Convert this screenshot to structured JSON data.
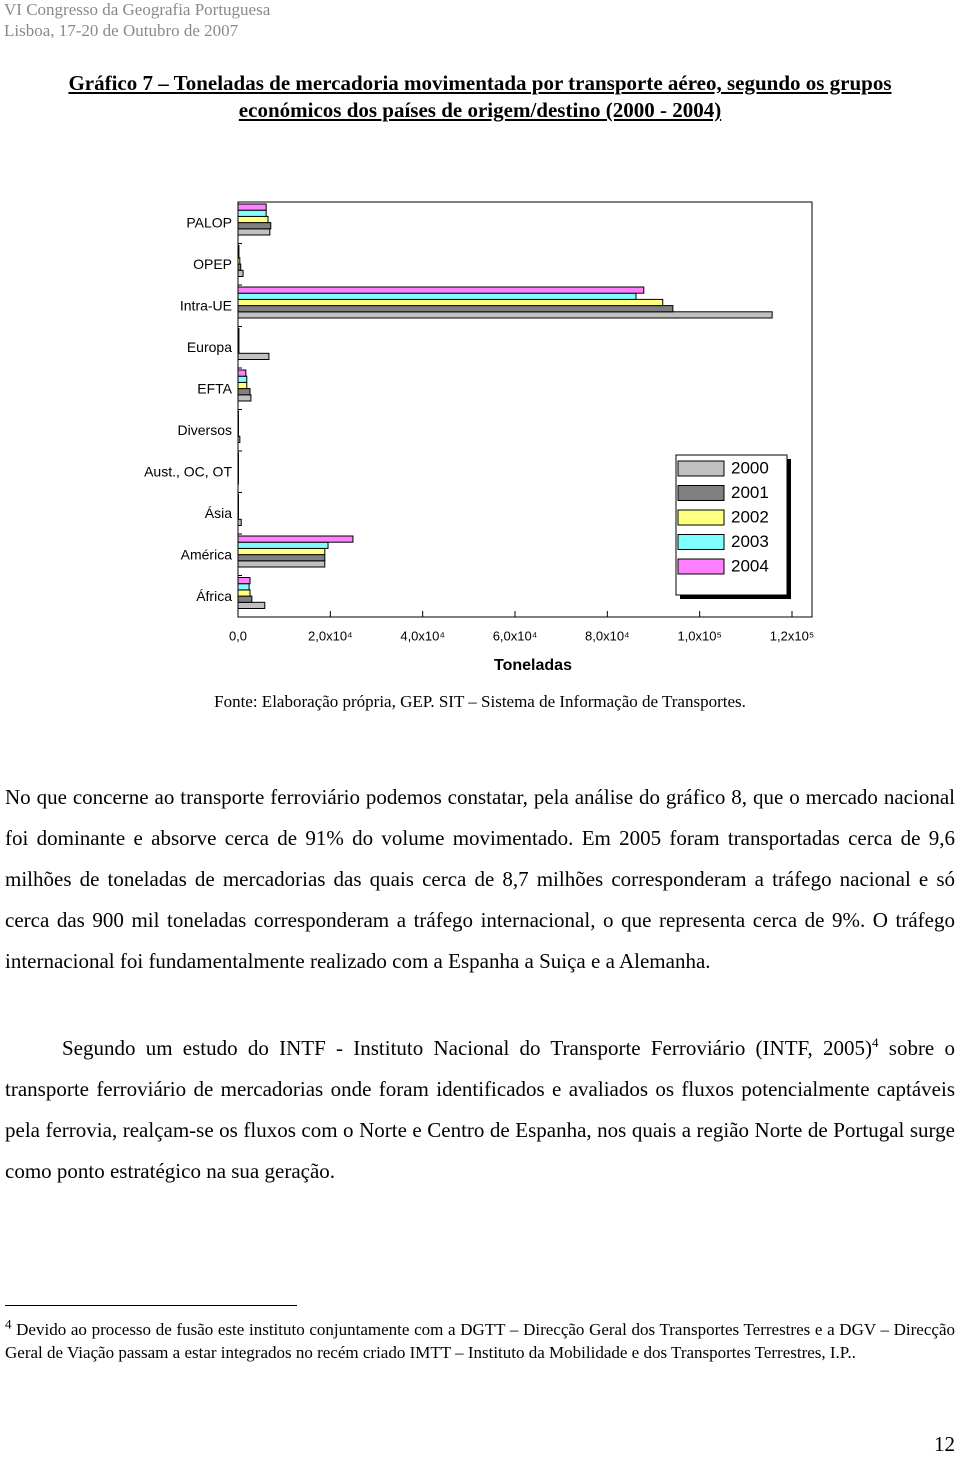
{
  "header": {
    "line1": "VI Congresso da Geografia Portuguesa",
    "line2": "Lisboa, 17-20 de Outubro de 2007"
  },
  "title": "Gráfico 7 – Toneladas de mercadoria movimentada por transporte aéreo, segundo os grupos económicos dos países de origem/destino (2000 - 2004)",
  "chart_data": {
    "type": "hbar",
    "categories": [
      "PALOP",
      "OPEP",
      "Intra-UE",
      "Europa",
      "EFTA",
      "Diversos",
      "Aust., OC, OT",
      "Ásia",
      "América",
      "África"
    ],
    "x_label": "Toneladas",
    "xlim": [
      0,
      125000
    ],
    "xticks": [
      {
        "value": 0,
        "label": "0,0"
      },
      {
        "value": 20000,
        "label": "2,0x10⁴"
      },
      {
        "value": 40000,
        "label": "4,0x10⁴"
      },
      {
        "value": 60000,
        "label": "6,0x10⁴"
      },
      {
        "value": 80000,
        "label": "8,0x10⁴"
      },
      {
        "value": 100000,
        "label": "1,0x10⁵"
      },
      {
        "value": 120000,
        "label": "1,2x10⁵"
      }
    ],
    "legend": "lower right",
    "series": [
      {
        "name": "2000",
        "color": "#c0c0c0",
        "values": [
          6900,
          1100,
          115700,
          6700,
          2800,
          400,
          100,
          700,
          18800,
          5800
        ]
      },
      {
        "name": "2001",
        "color": "#808080",
        "values": [
          7100,
          600,
          94200,
          200,
          2600,
          100,
          100,
          100,
          18800,
          3000
        ]
      },
      {
        "name": "2002",
        "color": "#ffff80",
        "values": [
          6500,
          400,
          92000,
          200,
          1900,
          100,
          100,
          100,
          18800,
          2600
        ]
      },
      {
        "name": "2003",
        "color": "#80ffff",
        "values": [
          6100,
          200,
          86200,
          200,
          1900,
          100,
          100,
          100,
          19500,
          2400
        ]
      },
      {
        "name": "2004",
        "color": "#ff80ff",
        "values": [
          6100,
          200,
          87900,
          200,
          1700,
          100,
          100,
          100,
          24900,
          2600
        ]
      }
    ]
  },
  "source": "Fonte: Elaboração própria, GEP. SIT – Sistema de Informação de Transportes.",
  "paragraphs": [
    {
      "text": "No que concerne ao transporte ferroviário podemos constatar, pela análise do gráfico 8, que o mercado nacional foi dominante e absorve cerca de 91% do volume movimentado. Em 2005 foram transportadas cerca de 9,6 milhões de toneladas de mercadorias das quais cerca de 8,7 milhões corresponderam a tráfego nacional e só cerca das 900 mil toneladas corresponderam a tráfego internacional, o que representa cerca de 9%. O tráfego internacional foi fundamentalmente realizado com a Espanha a Suiça e a Alemanha."
    },
    {
      "text": "Segundo um estudo do INTF - Instituto Nacional do Transporte Ferroviário (INTF, 2005)",
      "ref": "4",
      "rest": " sobre o transporte ferroviário de mercadorias onde foram identificados e avaliados os fluxos potencialmente captáveis pela ferrovia, realçam-se os fluxos com o Norte e Centro de Espanha, nos quais a região Norte de Portugal surge como ponto estratégico na sua geração."
    }
  ],
  "footnote": {
    "ref": "4",
    "text": " Devido ao processo de fusão este instituto conjuntamente com a DGTT – Direcção Geral dos Transportes Terrestres e a DGV – Direcção Geral de Viação passam a estar integrados no recém criado IMTT – Instituto da Mobilidade e dos Transportes Terrestres, I.P.."
  },
  "page_number": "12"
}
